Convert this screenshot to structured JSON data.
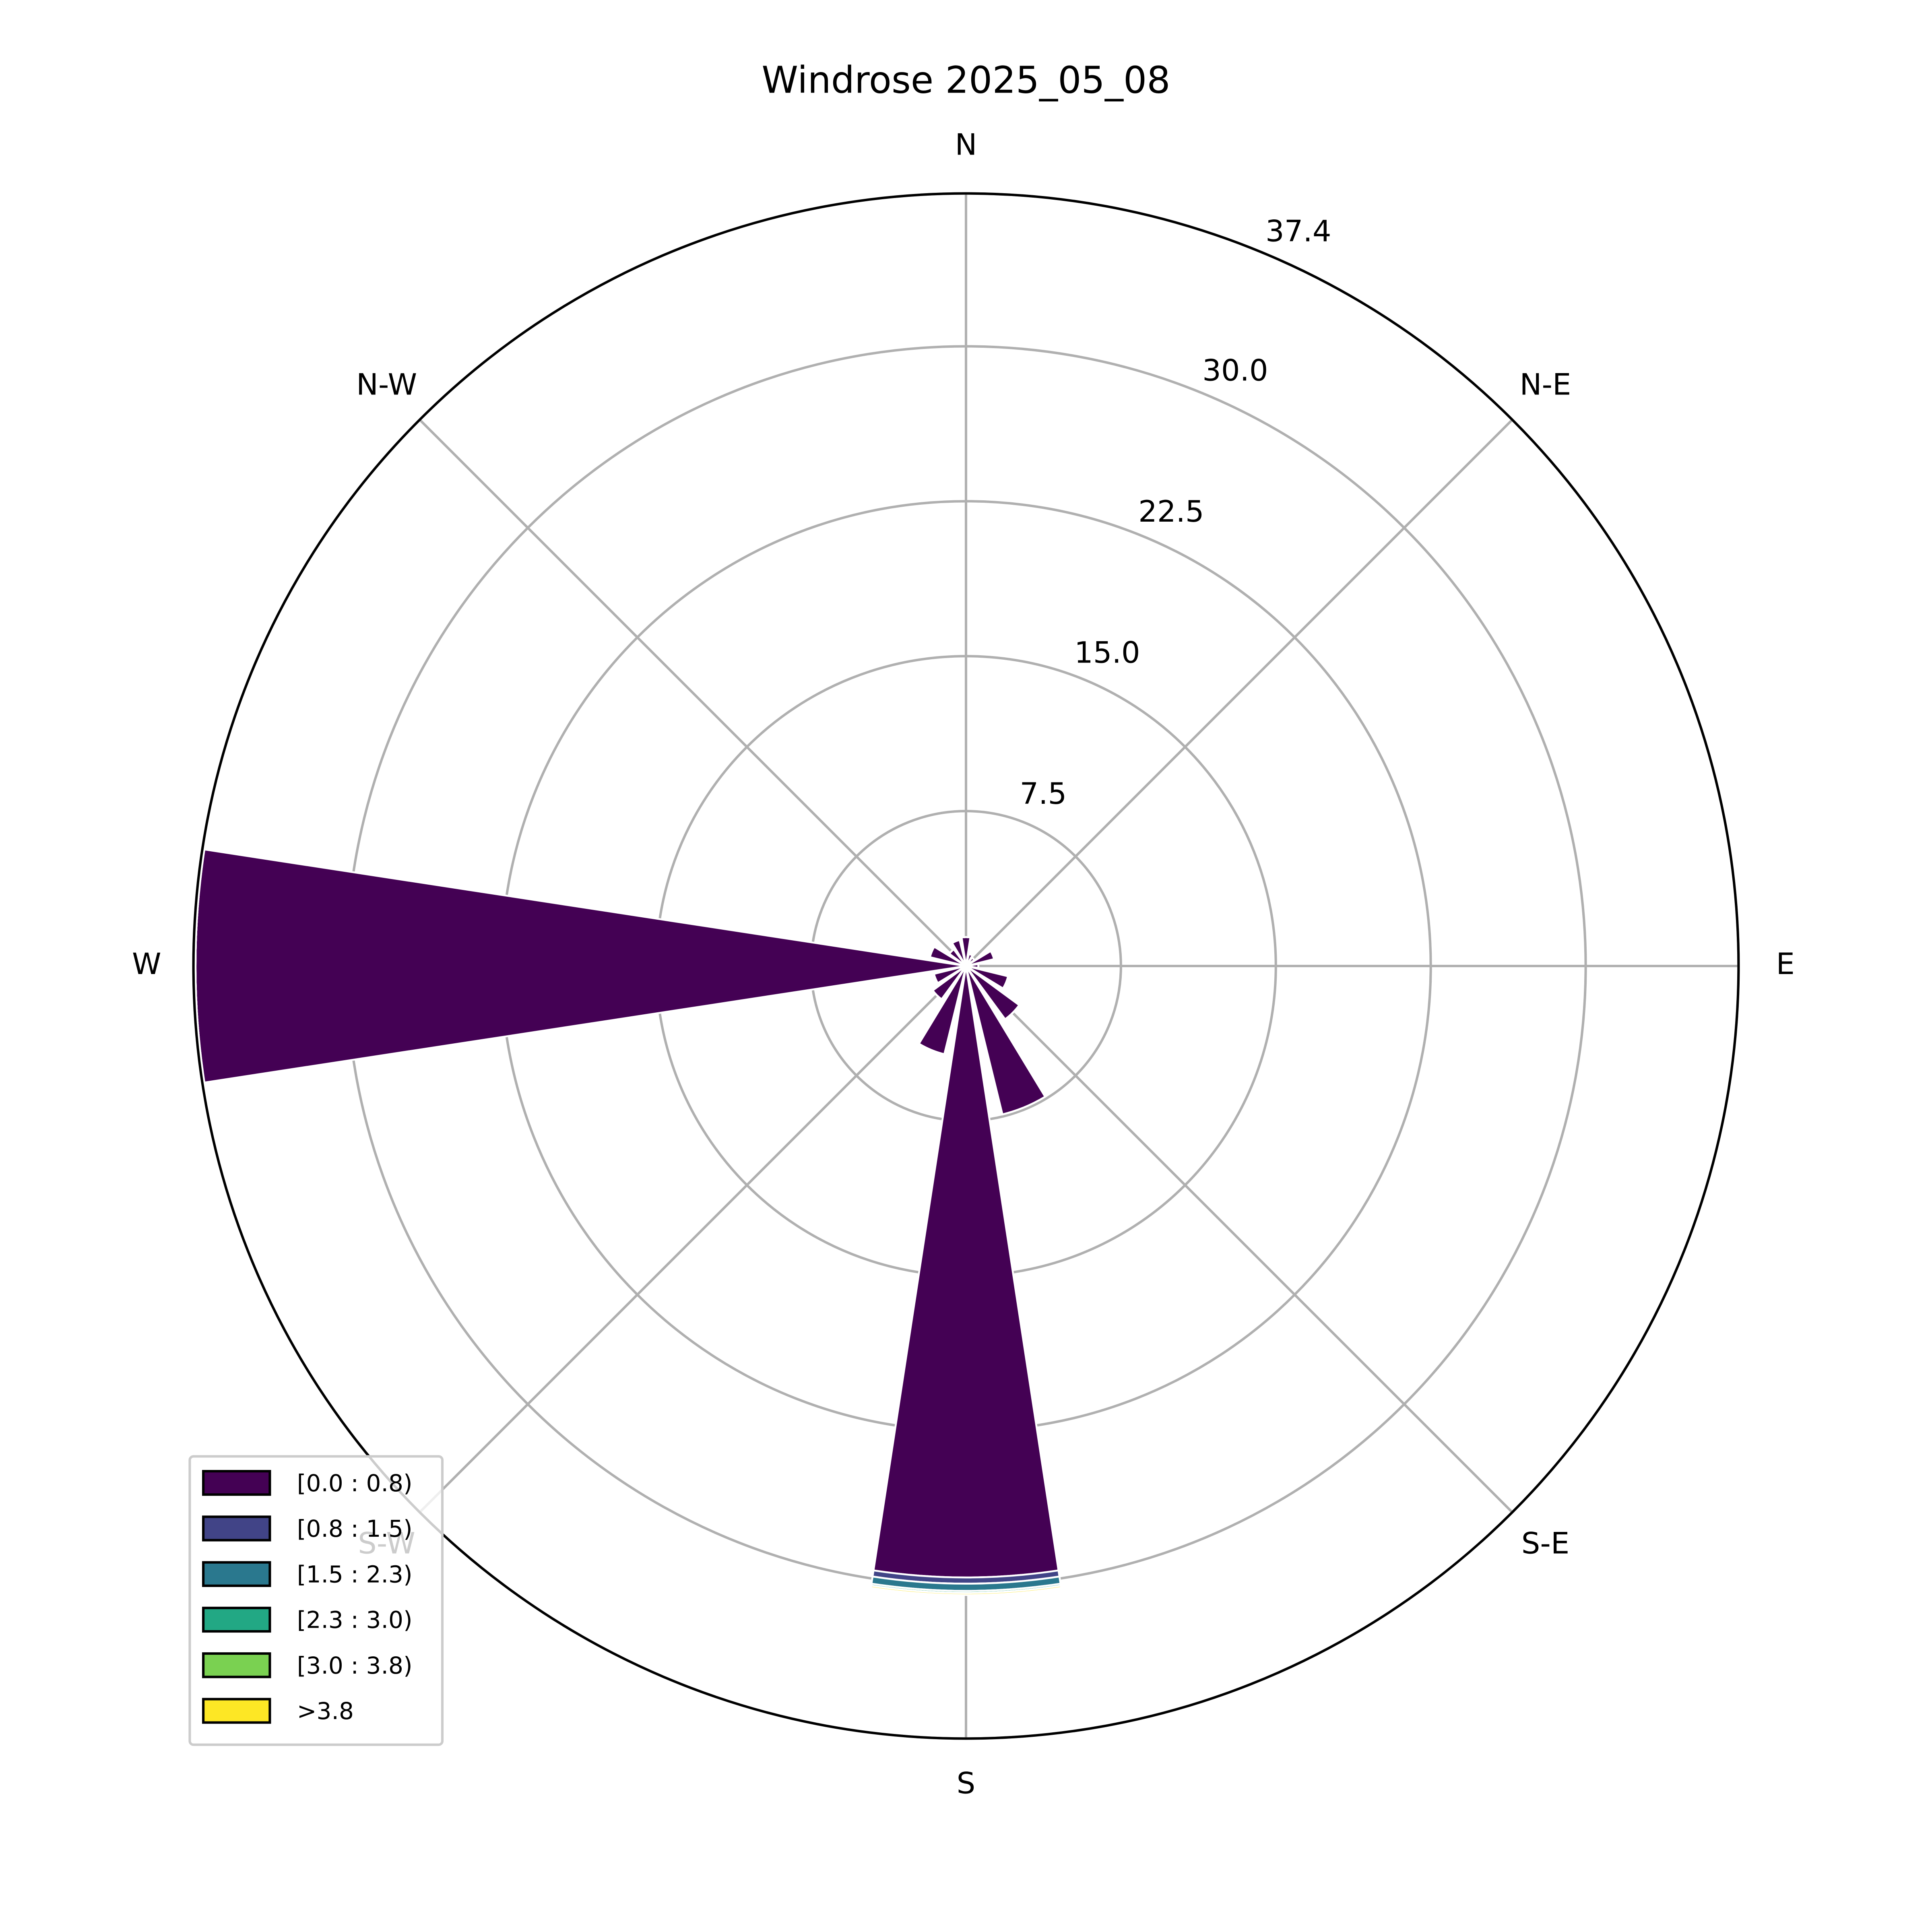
{
  "chart_data": {
    "type": "windrose",
    "title": "Windrose 2025_05_08",
    "categories": [
      "N",
      null,
      "N-E",
      null,
      "E",
      null,
      "S-E",
      null,
      "S",
      null,
      "S-W",
      null,
      "W",
      null,
      "N-W",
      null
    ],
    "series": [
      {
        "name": "[0.0 : 0.8)",
        "color": "#440154",
        "values": [
          1.4,
          0.6,
          0.5,
          1.4,
          0.6,
          2.1,
          3.2,
          7.4,
          29.6,
          4.4,
          2.0,
          1.6,
          37.3,
          1.8,
          1.0,
          1.3
        ]
      },
      {
        "name": "[0.8 : 1.5)",
        "color": "#414487",
        "values": [
          0,
          0,
          0,
          0,
          0,
          0,
          0,
          0,
          0.3,
          0,
          0,
          0,
          0,
          0,
          0,
          0
        ]
      },
      {
        "name": "[1.5 : 2.3)",
        "color": "#2a788e",
        "values": [
          0,
          0,
          0,
          0,
          0,
          0,
          0,
          0,
          0.35,
          0,
          0,
          0,
          0,
          0,
          0,
          0
        ]
      },
      {
        "name": "[2.3 : 3.0)",
        "color": "#22a884",
        "values": [
          0,
          0,
          0,
          0,
          0,
          0,
          0,
          0,
          0.1,
          0,
          0,
          0,
          0,
          0,
          0,
          0
        ]
      },
      {
        "name": "[3.0 : 3.8)",
        "color": "#7ad151",
        "values": [
          0,
          0,
          0,
          0,
          0,
          0,
          0,
          0,
          0,
          0,
          0,
          0,
          0,
          0,
          0,
          0
        ]
      },
      {
        "name": ">3.8",
        "color": "#fde725",
        "values": [
          0,
          0,
          0,
          0,
          0,
          0,
          0,
          0,
          0.1,
          0,
          0,
          0,
          0,
          0,
          0,
          0
        ]
      }
    ],
    "ylim": [
      0,
      37.4
    ],
    "yticks": [
      7.5,
      {
        "value": 15.0,
        "label": "15.0"
      },
      22.5,
      {
        "value": 30.0,
        "label": "30.0"
      },
      37.4
    ],
    "grid": true,
    "legend": "lower-left"
  }
}
